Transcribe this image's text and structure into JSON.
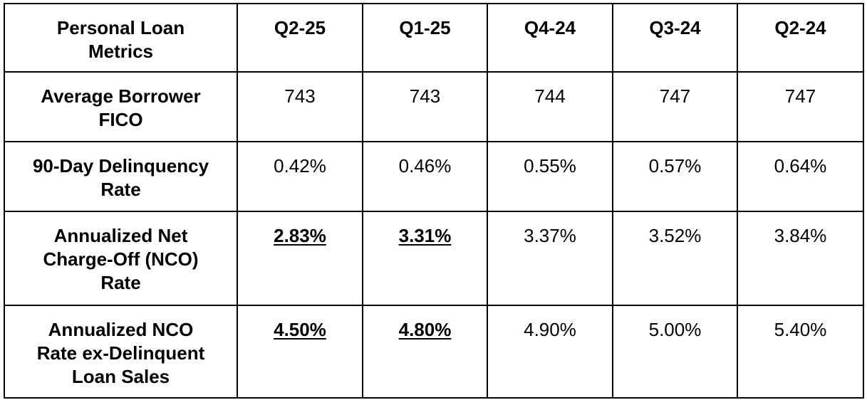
{
  "table": {
    "header": {
      "label": [
        "Personal Loan",
        "Metrics"
      ],
      "columns": [
        "Q2-25",
        "Q1-25",
        "Q4-24",
        "Q3-24",
        "Q2-24"
      ]
    },
    "rows": [
      {
        "label": [
          "Average Borrower",
          "FICO"
        ],
        "values": [
          "743",
          "743",
          "744",
          "747",
          "747"
        ],
        "emphasized": [
          false,
          false,
          false,
          false,
          false
        ]
      },
      {
        "label": [
          "90-Day Delinquency",
          "Rate"
        ],
        "values": [
          "0.42%",
          "0.46%",
          "0.55%",
          "0.57%",
          "0.64%"
        ],
        "emphasized": [
          false,
          false,
          false,
          false,
          false
        ]
      },
      {
        "label": [
          "Annualized Net",
          "Charge-Off (NCO)",
          "Rate"
        ],
        "values": [
          "2.83%",
          "3.31%",
          "3.37%",
          "3.52%",
          "3.84%"
        ],
        "emphasized": [
          true,
          true,
          false,
          false,
          false
        ]
      },
      {
        "label": [
          "Annualized NCO",
          "Rate ex-Delinquent",
          "Loan Sales"
        ],
        "values": [
          "4.50%",
          "4.80%",
          "4.90%",
          "5.00%",
          "5.40%"
        ],
        "emphasized": [
          true,
          true,
          false,
          false,
          false
        ]
      }
    ]
  }
}
